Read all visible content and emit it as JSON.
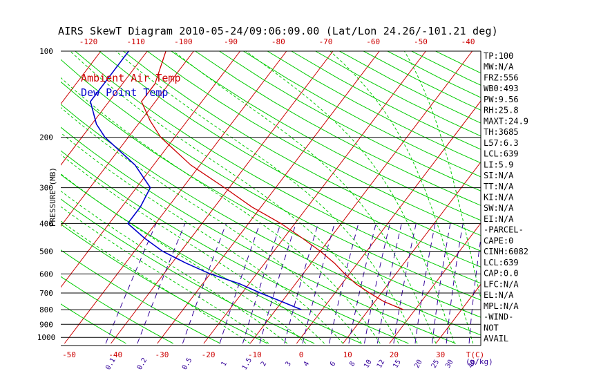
{
  "chart_data": {
    "type": "line",
    "title": "AIRS SkewT Diagram 2010-05-24/09:06:09.00 (Lat/Lon 24.26/-101.21 deg)",
    "ylabel": "PRESSURE (MB)",
    "y_scale": "log",
    "y_reversed": true,
    "ylim": [
      1050,
      100
    ],
    "y_ticks": [
      100,
      200,
      300,
      400,
      500,
      600,
      700,
      800,
      900,
      1000
    ],
    "x_bottom_ticks": [
      "-50",
      "-40",
      "-30",
      "-20",
      "-10",
      "0",
      "10",
      "20",
      "30"
    ],
    "x_top_ticks": [
      "-120",
      "-110",
      "-100",
      "-90",
      "-80",
      "-70",
      "-60",
      "-50",
      "-40"
    ],
    "x_unit_label": "T(C)",
    "mixing_ratio_ticks": [
      "0.1",
      "0.2",
      "0.5",
      "1",
      "1.5",
      "2",
      "3",
      "4",
      "6",
      "8",
      "10",
      "12",
      "15",
      "20",
      "25",
      "30",
      "40"
    ],
    "mixing_ratio_unit": "(g/kg)",
    "legend": {
      "position": "top-left",
      "entries": [
        "Ambient Air Temp",
        "Dew Point Temp"
      ]
    },
    "series": [
      {
        "name": "Ambient Air Temp",
        "color": "#cc0000",
        "points": [
          [
            100,
            -76
          ],
          [
            130,
            -73
          ],
          [
            150,
            -73
          ],
          [
            175,
            -68
          ],
          [
            200,
            -63
          ],
          [
            250,
            -52
          ],
          [
            300,
            -41
          ],
          [
            350,
            -32
          ],
          [
            400,
            -23
          ],
          [
            450,
            -16
          ],
          [
            500,
            -10
          ],
          [
            550,
            -5
          ],
          [
            600,
            -1
          ],
          [
            650,
            3
          ],
          [
            700,
            7.5
          ],
          [
            750,
            12
          ],
          [
            800,
            17.5
          ]
        ]
      },
      {
        "name": "Dew Point Temp",
        "color": "#0000cc",
        "points": [
          [
            100,
            -84
          ],
          [
            130,
            -84
          ],
          [
            150,
            -84
          ],
          [
            180,
            -79
          ],
          [
            200,
            -75
          ],
          [
            250,
            -64
          ],
          [
            300,
            -57
          ],
          [
            350,
            -56
          ],
          [
            400,
            -56
          ],
          [
            450,
            -50
          ],
          [
            500,
            -44
          ],
          [
            550,
            -37
          ],
          [
            600,
            -30
          ],
          [
            650,
            -22
          ],
          [
            700,
            -16
          ],
          [
            750,
            -10
          ],
          [
            800,
            -4.5
          ]
        ]
      }
    ],
    "stats": [
      "TP:100",
      "MW:N/A",
      "FRZ:556",
      "WB0:493",
      "PW:9.56",
      "RH:25.8",
      "MAXT:24.9",
      "TH:3685",
      "L57:6.3",
      "LCL:639",
      "LI:5.9",
      "SI:N/A",
      "TT:N/A",
      "KI:N/A",
      "SW:N/A",
      "EI:N/A",
      "-PARCEL-",
      "CAPE:0",
      "CINH:6082",
      "LCL:639",
      "CAP:0.0",
      "LFC:N/A",
      "EL:N/A",
      "MPL:N/A",
      "-WIND-",
      "NOT",
      "AVAIL"
    ],
    "colors": {
      "isotherm": "#cc0000",
      "dry_adiabat": "#00cc00",
      "moist_adiabat": "#00cc00",
      "mixing_ratio": "#330099",
      "isobar": "#000000",
      "temp_ticks": "#cc0000",
      "mixing_labels": "#330099",
      "legend_air": "#cc0000",
      "legend_dew": "#0000cc"
    }
  }
}
